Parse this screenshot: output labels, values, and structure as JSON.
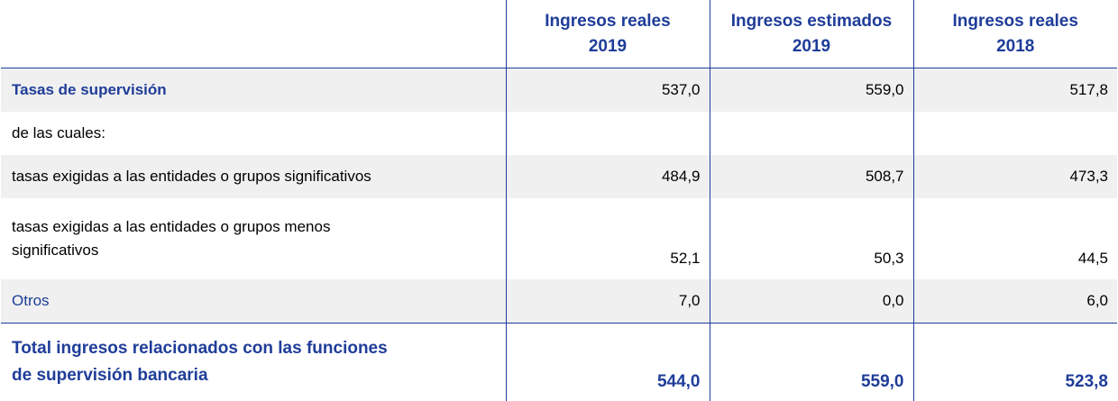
{
  "columns": [
    "Ingresos reales 2019",
    "Ingresos estimados 2019",
    "Ingresos reales 2018"
  ],
  "header": [
    {
      "line1": "Ingresos reales",
      "line2": "2019"
    },
    {
      "line1": "Ingresos estimados",
      "line2": "2019"
    },
    {
      "line1": "Ingresos reales",
      "line2": "2018"
    }
  ],
  "rows": [
    {
      "label": "Tasas de supervisión",
      "values": [
        "537,0",
        "559,0",
        "517,8"
      ]
    },
    {
      "label": "de las cuales:",
      "values": [
        "",
        "",
        ""
      ]
    },
    {
      "label": "tasas exigidas a las entidades o grupos significativos",
      "values": [
        "484,9",
        "508,7",
        "473,3"
      ]
    },
    {
      "label_line1": "tasas exigidas a las entidades o grupos menos",
      "label_line2": "significativos",
      "values": [
        "52,1",
        "50,3",
        "44,5"
      ]
    },
    {
      "label": "Otros",
      "values": [
        "7,0",
        "0,0",
        "6,0"
      ]
    }
  ],
  "total": {
    "label_line1": "Total ingresos relacionados con las funciones",
    "label_line2": "de supervisión bancaria",
    "values": [
      "544,0",
      "559,0",
      "523,8"
    ]
  },
  "colors": {
    "accent": "#1f3d99",
    "row_shade": "#f0f0f0"
  }
}
